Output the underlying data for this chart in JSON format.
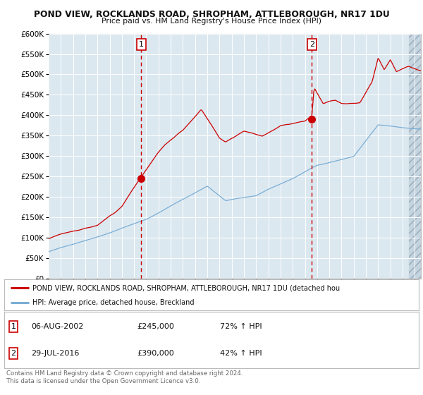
{
  "title1": "POND VIEW, ROCKLANDS ROAD, SHROPHAM, ATTLEBOROUGH, NR17 1DU",
  "title2": "Price paid vs. HM Land Registry's House Price Index (HPI)",
  "legend_line1": "POND VIEW, ROCKLANDS ROAD, SHROPHAM, ATTLEBOROUGH, NR17 1DU (detached hou",
  "legend_line2": "HPI: Average price, detached house, Breckland",
  "annotation1": {
    "label": "1",
    "date_x": 2002.58,
    "y": 245000,
    "vline_x": 2002.58,
    "table_date": "06-AUG-2002",
    "price": "£245,000",
    "hpi": "72% ↑ HPI"
  },
  "annotation2": {
    "label": "2",
    "date_x": 2016.57,
    "y": 390000,
    "vline_x": 2016.57,
    "table_date": "29-JUL-2016",
    "price": "£390,000",
    "hpi": "42% ↑ HPI"
  },
  "red_line_color": "#cc0000",
  "blue_line_color": "#7aaed6",
  "plot_bg": "#dce8f0",
  "grid_color": "#ffffff",
  "vline_color": "#cc0000",
  "dot_color": "#cc0000",
  "footer_text": "Contains HM Land Registry data © Crown copyright and database right 2024.\nThis data is licensed under the Open Government Licence v3.0.",
  "ylim": [
    0,
    600000
  ],
  "yticks": [
    0,
    50000,
    100000,
    150000,
    200000,
    250000,
    300000,
    350000,
    400000,
    450000,
    500000,
    550000,
    600000
  ],
  "xmin": 1995.0,
  "xmax": 2025.5,
  "hatch_start": 2024.5
}
